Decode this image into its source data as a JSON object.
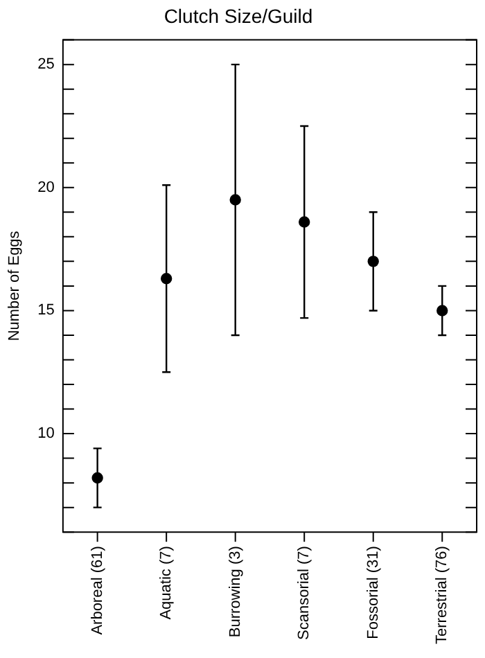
{
  "chart_data": {
    "type": "scatter",
    "title": "Clutch Size/Guild",
    "ylabel": "Number of Eggs",
    "categories": [
      "Arboreal (61)",
      "Aquatic (7)",
      "Burrowing (3)",
      "Scansorial (7)",
      "Fossorial (31)",
      "Terrestrial (76)"
    ],
    "values": [
      8.2,
      16.3,
      19.5,
      18.6,
      17.0,
      15.0
    ],
    "errors": [
      1.2,
      3.8,
      5.5,
      3.9,
      2.0,
      1.0
    ],
    "color": "#000000",
    "marker": "circle",
    "grid": false,
    "legend": false,
    "ylim": [
      6,
      26
    ],
    "yticks": [
      {
        "value": 6,
        "label": null
      },
      {
        "value": 7,
        "label": null
      },
      {
        "value": 8,
        "label": null
      },
      {
        "value": 9,
        "label": null
      },
      10,
      {
        "value": 11,
        "label": null
      },
      {
        "value": 12,
        "label": null
      },
      {
        "value": 13,
        "label": null
      },
      {
        "value": 14,
        "label": null
      },
      15,
      {
        "value": 16,
        "label": null
      },
      {
        "value": 17,
        "label": null
      },
      {
        "value": 18,
        "label": null
      },
      {
        "value": 19,
        "label": null
      },
      20,
      {
        "value": 21,
        "label": null
      },
      {
        "value": 22,
        "label": null
      },
      {
        "value": 23,
        "label": null
      },
      {
        "value": 24,
        "label": null
      },
      25,
      {
        "value": 26,
        "label": null
      }
    ]
  }
}
